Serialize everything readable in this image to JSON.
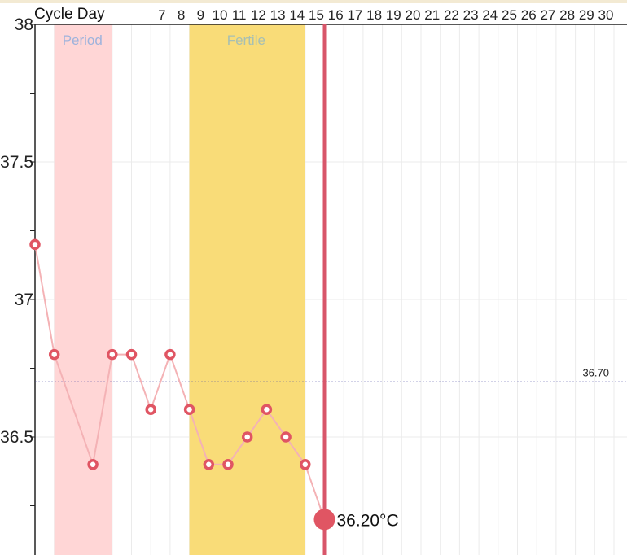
{
  "header": {
    "label": "Cycle Day"
  },
  "bands": [
    {
      "name": "period",
      "label": "Period",
      "from_day": 1,
      "to_day": 4,
      "color": "#ffd6d6",
      "label_color": "#9fb3dc"
    },
    {
      "name": "fertile",
      "label": "Fertile",
      "from_day": 8,
      "to_day": 14,
      "color": "#f9dc78",
      "label_color": "#a7bfb3"
    }
  ],
  "colors": {
    "line": "#f4b2b5",
    "marker": "#e05563",
    "today": "#d8566a",
    "coverline": "#4a4aa6",
    "grid": "#ebebeb"
  },
  "chart_data": {
    "type": "line",
    "title": "",
    "xlabel": "Cycle Day",
    "ylabel": "",
    "x_tick_labels": [
      "",
      "",
      "",
      "",
      "",
      "7",
      "8",
      "9",
      "10",
      "11",
      "12",
      "13",
      "14",
      "15",
      "16",
      "17",
      "18",
      "19",
      "20",
      "21",
      "22",
      "23",
      "24",
      "25",
      "26",
      "27",
      "28",
      "29",
      "30"
    ],
    "y_ticks": [
      "38",
      "37.5",
      "37",
      "36.5"
    ],
    "ylim": [
      36.05,
      38
    ],
    "xlim": [
      0,
      30
    ],
    "series": [
      {
        "x": [
          0,
          1,
          3,
          4,
          5,
          6,
          7,
          8,
          9,
          10,
          11,
          12,
          13,
          14
        ],
        "y": [
          37.2,
          36.8,
          36.4,
          36.8,
          36.8,
          36.6,
          36.8,
          36.6,
          36.4,
          36.4,
          36.5,
          36.6,
          36.5,
          36.4
        ]
      }
    ],
    "today": {
      "day": 15,
      "value": 36.2,
      "label": "36.20°C"
    },
    "coverline": {
      "value": 36.7,
      "label": "36.70"
    },
    "grid": true
  }
}
